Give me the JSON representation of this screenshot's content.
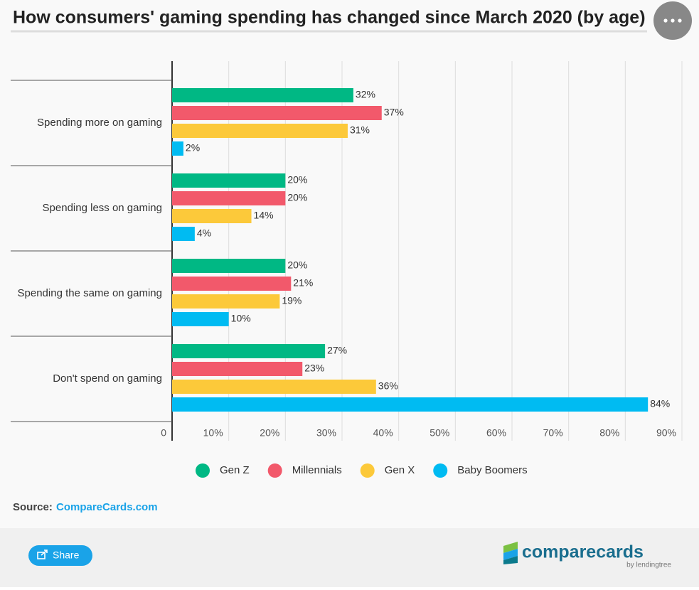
{
  "chart_data": {
    "type": "bar",
    "orientation": "horizontal",
    "title": "How consumers' gaming spending has changed since March 2020 (by age)",
    "categories": [
      "Spending more on gaming",
      "Spending less on gaming",
      "Spending the same on gaming",
      "Don't spend on gaming"
    ],
    "series": [
      {
        "name": "Gen Z",
        "color": "#00b884",
        "values": [
          32,
          20,
          20,
          27
        ],
        "value_labels": [
          "32%",
          "20%",
          "20%",
          "27%"
        ]
      },
      {
        "name": "Millennials",
        "color": "#f2596b",
        "values": [
          37,
          20,
          21,
          23
        ],
        "value_labels": [
          "37%",
          "20%",
          "21%",
          "23%"
        ]
      },
      {
        "name": "Gen X",
        "color": "#fcc93a",
        "values": [
          31,
          14,
          19,
          36
        ],
        "value_labels": [
          "31%",
          "14%",
          "19%",
          "36%"
        ]
      },
      {
        "name": "Baby Boomers",
        "color": "#00bbf2",
        "values": [
          2,
          4,
          10,
          84
        ],
        "value_labels": [
          "2%",
          "4%",
          "10%",
          "84%"
        ]
      }
    ],
    "xlim": [
      0,
      90
    ],
    "xticks": [
      0,
      {
        "value": 10,
        "label": "10%"
      },
      {
        "value": 20,
        "label": "20%"
      },
      {
        "value": 30,
        "label": "30%"
      },
      {
        "value": 40,
        "label": "40%"
      },
      {
        "value": 50,
        "label": "50%"
      },
      {
        "value": 60,
        "label": "60%"
      },
      {
        "value": 70,
        "label": "70%"
      },
      {
        "value": 80,
        "label": "80%"
      },
      {
        "value": 90,
        "label": "90%"
      }
    ],
    "grid": true,
    "legend": "bottom"
  },
  "source": {
    "label": "Source:",
    "link": "CompareCards.com"
  },
  "footer": {
    "share": "Share",
    "logo": "comparecards",
    "logo_sub": "by lendingtree"
  }
}
